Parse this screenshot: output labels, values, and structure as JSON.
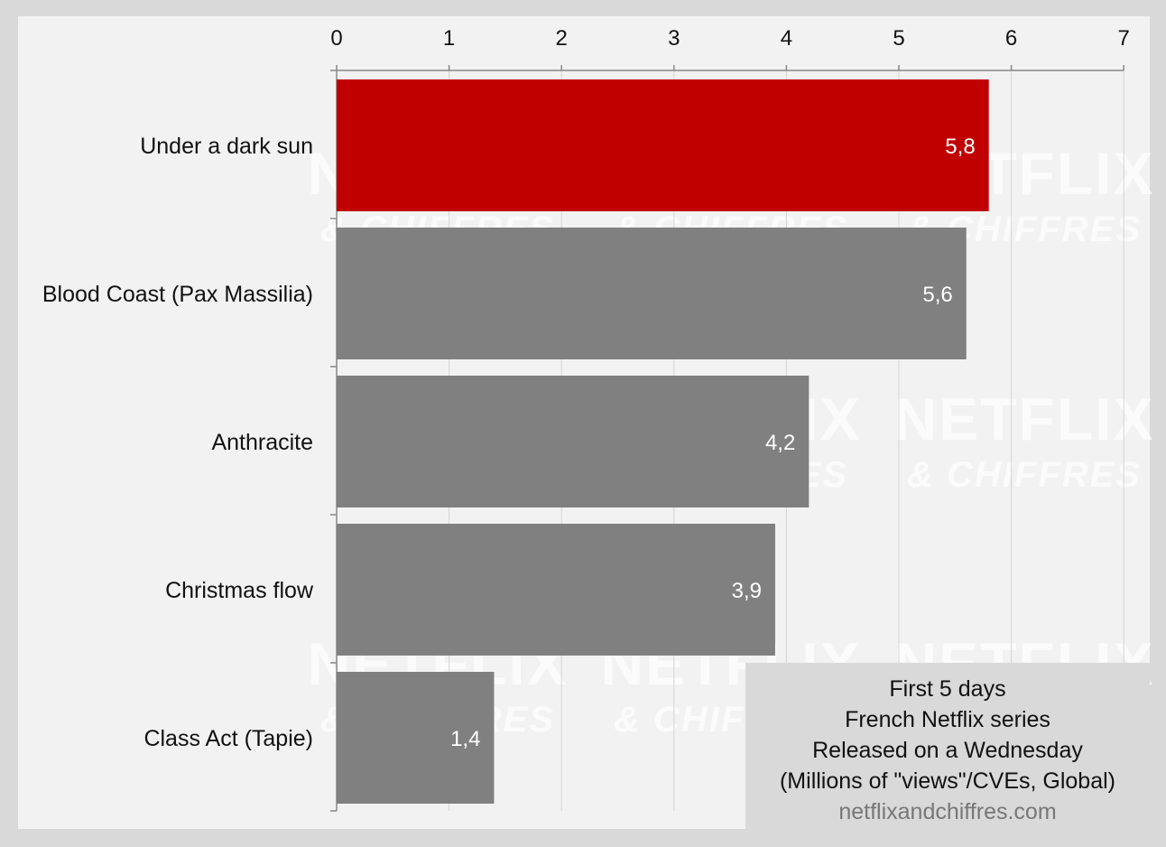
{
  "chart_data": {
    "type": "bar",
    "orientation": "horizontal",
    "categories": [
      "Under a dark sun",
      "Blood Coast (Pax Massilia)",
      "Anthracite",
      "Christmas flow",
      "Class Act (Tapie)"
    ],
    "values": [
      5.8,
      5.6,
      4.2,
      3.9,
      1.4
    ],
    "value_labels": [
      "5,8",
      "5,6",
      "4,2",
      "3,9",
      "1,4"
    ],
    "highlight_index": 0,
    "colors": {
      "highlight": "#c00000",
      "default": "#808080",
      "grid": "#d4d4d4",
      "axis": "#888888"
    },
    "xlim": [
      0,
      7
    ],
    "xticks": [
      0,
      1,
      2,
      3,
      4,
      5,
      6,
      7
    ],
    "x_axis_position": "top",
    "grid": true,
    "legend_box": {
      "lines": [
        "First 5 days",
        "French Netflix series",
        "Released on a Wednesday",
        "(Millions of \"views\"/CVEs, Global)"
      ],
      "site": "netflixandchiffres.com"
    },
    "watermark": {
      "line1": "NETFLIX",
      "line2": "& CHIFFRES"
    }
  }
}
